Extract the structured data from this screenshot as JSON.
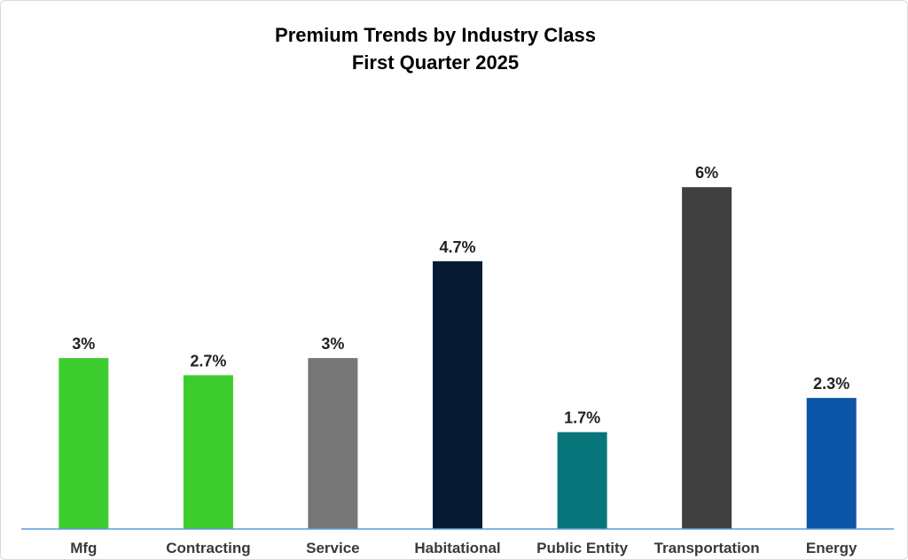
{
  "chart_data": {
    "type": "bar",
    "title": "Premium Trends by Industry Class",
    "subtitle": "First Quarter 2025",
    "categories": [
      "Mfg",
      "Contracting",
      "Service",
      "Habitational",
      "Public Entity",
      "Transportation",
      "Energy"
    ],
    "values": [
      3,
      2.7,
      3,
      4.7,
      1.7,
      6,
      2.3
    ],
    "value_labels": [
      "3%",
      "2.7%",
      "3%",
      "4.7%",
      "1.7%",
      "6%",
      "2.3%"
    ],
    "colors": [
      "#3dcc2e",
      "#3dcc2e",
      "#767676",
      "#061a33",
      "#08757a",
      "#404040",
      "#0b55a6"
    ],
    "xlabel": "",
    "ylabel": "",
    "ylim": [
      0,
      6.45
    ],
    "grid": false,
    "legend": "none",
    "axis_color": "#5b9bd5"
  }
}
